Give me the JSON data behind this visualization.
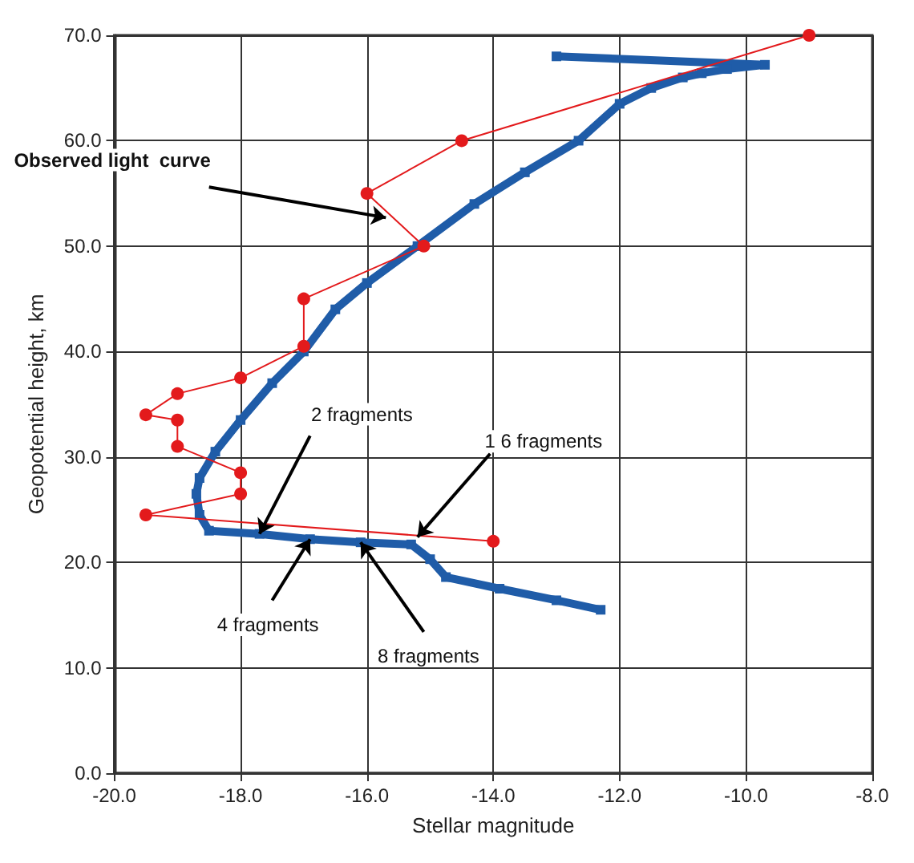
{
  "chart_data": {
    "type": "line",
    "xlabel": "Stellar magnitude",
    "ylabel": "Geopotential height, km",
    "series": [
      {
        "color": "#e31a1c",
        "marker": "circle",
        "line_style": "solid",
        "x": [
          -9,
          -14.5,
          -16,
          -15.1,
          -17,
          -17,
          -18,
          -19,
          -19.5,
          -19,
          -19,
          -18,
          -18,
          -19.5,
          -14
        ],
        "values": [
          70,
          60,
          55,
          50,
          45,
          40.5,
          37.5,
          36,
          34,
          33.5,
          31,
          28.5,
          26.5,
          24.5,
          22
        ]
      },
      {
        "color": "#1f5ca8",
        "marker": "square",
        "line_style": "solid",
        "x": [
          -13,
          -9.7,
          -10.3,
          -10.7,
          -11,
          -11.5,
          -12,
          -12.65,
          -13.5,
          -14.3,
          -15.2,
          -16,
          -16.5,
          -17,
          -17.5,
          -18,
          -18.4,
          -18.65,
          -18.7,
          -18.65,
          -18.5,
          -17.7,
          -16.9,
          -16.1,
          -15.3,
          -15,
          -14.75,
          -13.9,
          -13,
          -12.3
        ],
        "values": [
          68,
          67.2,
          66.8,
          66.4,
          66,
          65,
          63.5,
          60,
          57,
          54,
          50,
          46.5,
          44,
          40,
          37,
          33.5,
          30.5,
          28,
          26.5,
          24.5,
          23,
          22.7,
          22.2,
          21.9,
          21.7,
          20.3,
          18.6,
          17.5,
          16.4,
          15.5
        ]
      }
    ],
    "annotations": [
      {
        "text": "Observed light  curve",
        "x": -15.7,
        "y": 52.7
      },
      {
        "text": "2 fragments",
        "x": -17.7,
        "y": 22.7
      },
      {
        "text": "1 6 fragments",
        "x": -15.2,
        "y": 22.4
      },
      {
        "text": "4 fragments",
        "x": -16.9,
        "y": 22.2
      },
      {
        "text": "8 fragments",
        "x": -16.1,
        "y": 21.9
      }
    ],
    "xlim": [
      -20,
      -8
    ],
    "ylim": [
      0,
      70
    ],
    "xticks": [
      {
        "value": -20,
        "label": "-20.0"
      },
      {
        "value": -18,
        "label": "-18.0"
      },
      {
        "value": -16,
        "label": "-16.0"
      },
      {
        "value": -14,
        "label": "-14.0"
      },
      {
        "value": -12,
        "label": "-12.0"
      },
      {
        "value": -10,
        "label": "-10.0"
      },
      {
        "value": -8,
        "label": "-8.0"
      }
    ],
    "yticks": [
      {
        "value": 0,
        "label": "0.0"
      },
      {
        "value": 10,
        "label": "10.0"
      },
      {
        "value": 20,
        "label": "20.0"
      },
      {
        "value": 30,
        "label": "30.0"
      },
      {
        "value": 40,
        "label": "40.0"
      },
      {
        "value": 50,
        "label": "50.0"
      },
      {
        "value": 60,
        "label": "60.0"
      },
      {
        "value": 70,
        "label": "70.0"
      }
    ],
    "grid": true
  }
}
